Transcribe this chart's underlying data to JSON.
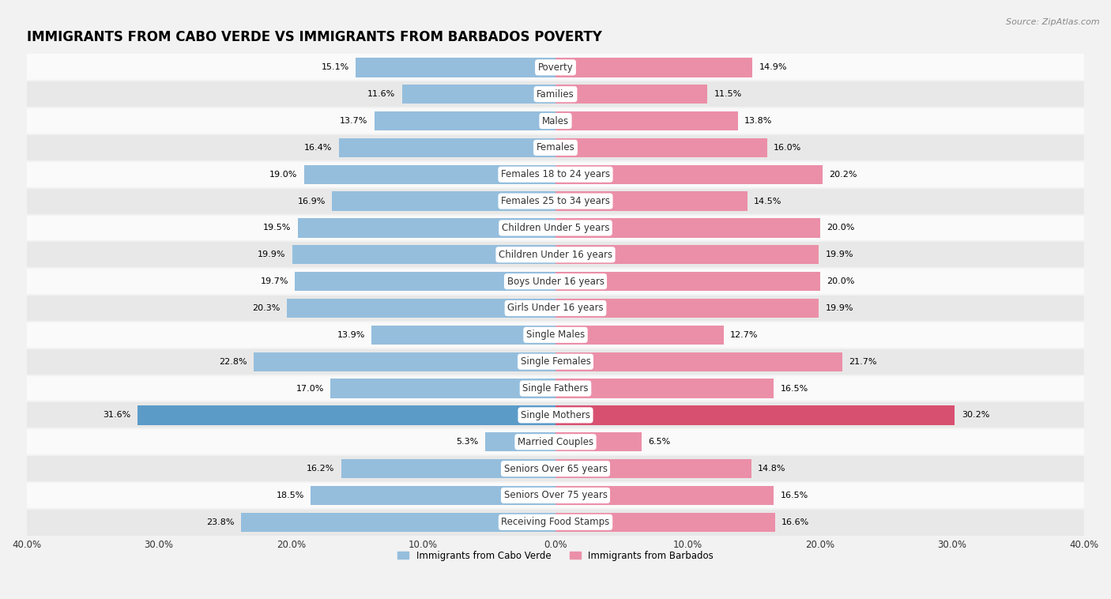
{
  "title": "IMMIGRANTS FROM CABO VERDE VS IMMIGRANTS FROM BARBADOS POVERTY",
  "source": "Source: ZipAtlas.com",
  "categories": [
    "Poverty",
    "Families",
    "Males",
    "Females",
    "Females 18 to 24 years",
    "Females 25 to 34 years",
    "Children Under 5 years",
    "Children Under 16 years",
    "Boys Under 16 years",
    "Girls Under 16 years",
    "Single Males",
    "Single Females",
    "Single Fathers",
    "Single Mothers",
    "Married Couples",
    "Seniors Over 65 years",
    "Seniors Over 75 years",
    "Receiving Food Stamps"
  ],
  "cabo_verde": [
    15.1,
    11.6,
    13.7,
    16.4,
    19.0,
    16.9,
    19.5,
    19.9,
    19.7,
    20.3,
    13.9,
    22.8,
    17.0,
    31.6,
    5.3,
    16.2,
    18.5,
    23.8
  ],
  "barbados": [
    14.9,
    11.5,
    13.8,
    16.0,
    20.2,
    14.5,
    20.0,
    19.9,
    20.0,
    19.9,
    12.7,
    21.7,
    16.5,
    30.2,
    6.5,
    14.8,
    16.5,
    16.6
  ],
  "cabo_verde_color": "#95bedd",
  "barbados_color": "#eb8fa8",
  "cabo_verde_highlight_color": "#5b9bc8",
  "barbados_highlight_color": "#d85070",
  "background_color": "#f2f2f2",
  "row_color_even": "#fafafa",
  "row_color_odd": "#e8e8e8",
  "xlim": 40.0,
  "bar_height": 0.72,
  "legend_label_1": "Immigrants from Cabo Verde",
  "legend_label_2": "Immigrants from Barbados",
  "title_fontsize": 12,
  "label_fontsize": 8.5,
  "tick_fontsize": 8.5,
  "value_fontsize": 8.0
}
